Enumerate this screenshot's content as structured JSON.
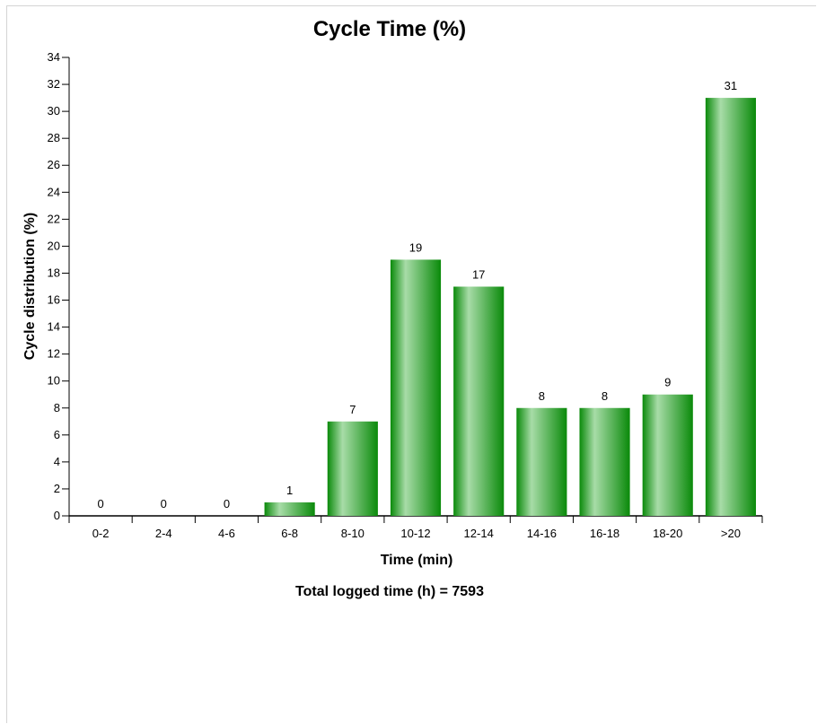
{
  "chart_data": {
    "type": "bar",
    "title": "Cycle Time (%)",
    "xlabel": "Time (min)",
    "ylabel": "Cycle distribution (%)",
    "categories": [
      "0-2",
      "2-4",
      "4-6",
      "6-8",
      "8-10",
      "10-12",
      "12-14",
      "14-16",
      "16-18",
      "18-20",
      ">20"
    ],
    "values": [
      0,
      0,
      0,
      1,
      7,
      19,
      17,
      8,
      8,
      9,
      31
    ],
    "ylim": [
      0,
      34
    ],
    "yticks": [
      0,
      2,
      4,
      6,
      8,
      10,
      12,
      14,
      16,
      18,
      20,
      22,
      24,
      26,
      28,
      30,
      32,
      34
    ],
    "data_labels": true,
    "grid": false,
    "bar_color": "#0a8a0a",
    "bar_highlight": "#a8dca8"
  },
  "footer_text": "Total logged time (h) = 7593"
}
